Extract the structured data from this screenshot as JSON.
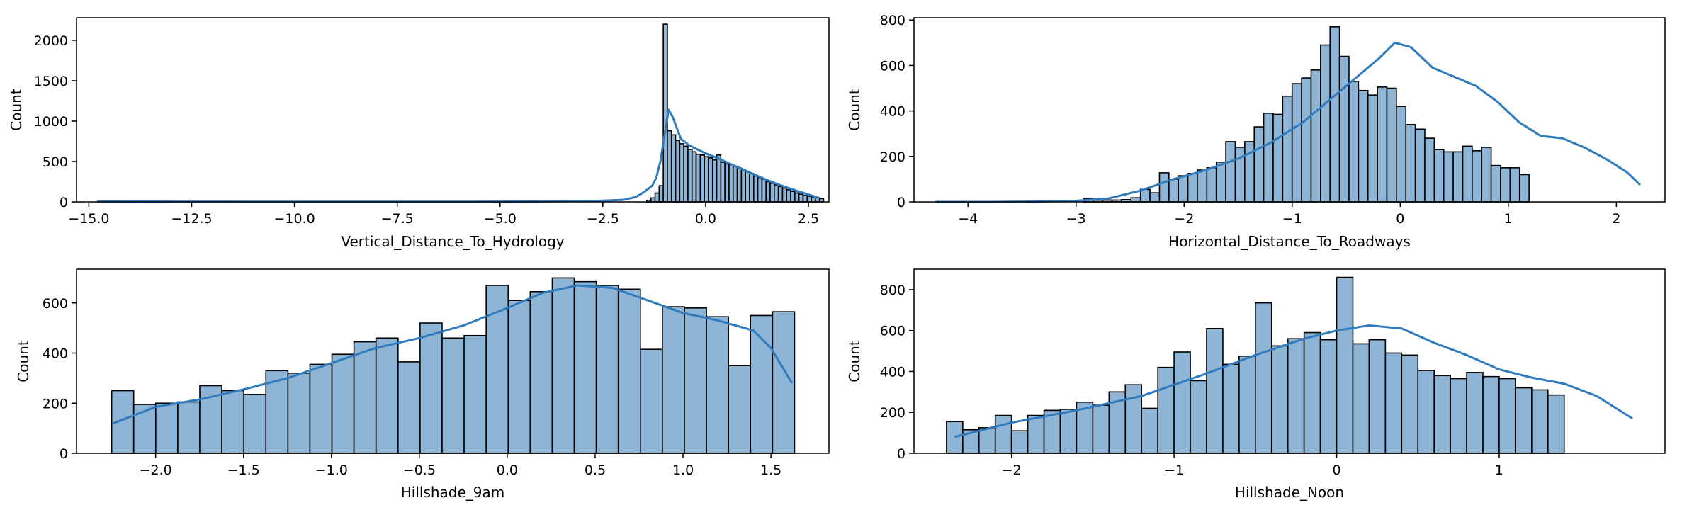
{
  "chart_data": [
    {
      "type": "bar",
      "xlabel": "Vertical_Distance_To_Hydrology",
      "ylabel": "Count",
      "xlim": [
        -15.3,
        3.0
      ],
      "ylim": [
        0,
        2280
      ],
      "xticks": [
        -15.0,
        -12.5,
        -10.0,
        -7.5,
        -5.0,
        -2.5,
        0.0,
        2.5
      ],
      "xtick_labels": [
        "−15.0",
        "−12.5",
        "−10.0",
        "−7.5",
        "−5.0",
        "−2.5",
        "0.0",
        "2.5"
      ],
      "yticks": [
        0,
        500,
        1000,
        1500,
        2000
      ],
      "ytick_labels": [
        "0",
        "500",
        "1000",
        "1500",
        "2000"
      ],
      "bar_color": "#8eb4d6",
      "edge_color": "#000000",
      "kde_color": "#2f7bbd",
      "bins": {
        "start": -1.43,
        "width": 0.1,
        "counts": [
          20,
          50,
          110,
          200,
          2200,
          880,
          830,
          760,
          720,
          690,
          650,
          620,
          590,
          580,
          560,
          545,
          520,
          580,
          490,
          470,
          460,
          440,
          420,
          400,
          380,
          350,
          320,
          300,
          280,
          250,
          230,
          210,
          190,
          170,
          150,
          130,
          110,
          95,
          80,
          70,
          60,
          50,
          40
        ]
      },
      "kde": {
        "x": [
          -14.8,
          -12,
          -9,
          -6,
          -4,
          -3,
          -2.5,
          -2,
          -1.7,
          -1.5,
          -1.3,
          -1.2,
          -1.1,
          -1.0,
          -0.9,
          -0.8,
          -0.6,
          -0.4,
          -0.2,
          0.0,
          0.3,
          0.6,
          1.0,
          1.4,
          1.8,
          2.2,
          2.6,
          2.75
        ],
        "y": [
          5,
          3,
          2,
          2,
          5,
          10,
          15,
          25,
          60,
          120,
          200,
          300,
          500,
          820,
          1140,
          1050,
          780,
          700,
          650,
          600,
          540,
          470,
          380,
          290,
          210,
          140,
          75,
          50
        ]
      }
    },
    {
      "type": "bar",
      "xlabel": "Horizontal_Distance_To_Roadways",
      "ylabel": "Count",
      "xlim": [
        -4.5,
        2.45
      ],
      "ylim": [
        0,
        810
      ],
      "xticks": [
        -4,
        -3,
        -2,
        -1,
        0,
        1,
        2
      ],
      "xtick_labels": [
        "−4",
        "−3",
        "−2",
        "−1",
        "0",
        "1",
        "2"
      ],
      "yticks": [
        0,
        200,
        400,
        600,
        800
      ],
      "ytick_labels": [
        "0",
        "200",
        "400",
        "600",
        "800"
      ],
      "bar_color": "#8eb4d6",
      "edge_color": "#000000",
      "kde_color": "#2f7bbd",
      "bins": {
        "start": -2.93,
        "width": 0.0877,
        "counts": [
          15,
          8,
          8,
          8,
          10,
          18,
          55,
          40,
          128,
          100,
          115,
          125,
          140,
          150,
          175,
          265,
          240,
          265,
          330,
          390,
          385,
          465,
          520,
          545,
          580,
          690,
          770,
          640,
          530,
          490,
          470,
          505,
          500,
          420,
          340,
          320,
          280,
          230,
          220,
          220,
          245,
          225,
          240,
          160,
          150,
          150,
          120
        ]
      },
      "kde": {
        "x": [
          -4.3,
          -3.8,
          -3.3,
          -3.0,
          -2.7,
          -2.4,
          -2.1,
          -1.8,
          -1.5,
          -1.2,
          -0.9,
          -0.6,
          -0.4,
          -0.2,
          -0.05,
          0.1,
          0.3,
          0.5,
          0.7,
          0.9,
          1.1,
          1.3,
          1.5,
          1.7,
          1.9,
          2.1,
          2.22
        ],
        "y": [
          0,
          0,
          2,
          5,
          15,
          50,
          100,
          140,
          190,
          260,
          350,
          470,
          550,
          630,
          700,
          680,
          590,
          550,
          510,
          440,
          350,
          290,
          280,
          240,
          190,
          130,
          75
        ]
      }
    },
    {
      "type": "bar",
      "xlabel": "Hillshade_9am",
      "ylabel": "Count",
      "xlim": [
        -2.45,
        1.83
      ],
      "ylim": [
        0,
        735
      ],
      "xticks": [
        -2.0,
        -1.5,
        -1.0,
        -0.5,
        0.0,
        0.5,
        1.0,
        1.5
      ],
      "xtick_labels": [
        "−2.0",
        "−1.5",
        "−1.0",
        "−0.5",
        "0.0",
        "0.5",
        "1.0",
        "1.5"
      ],
      "yticks": [
        0,
        200,
        400,
        600
      ],
      "ytick_labels": [
        "0",
        "200",
        "400",
        "600"
      ],
      "bar_color": "#8eb4d6",
      "edge_color": "#000000",
      "kde_color": "#2f7bbd",
      "bins": {
        "start": -2.25,
        "width": 0.1253,
        "counts": [
          250,
          195,
          200,
          205,
          270,
          250,
          235,
          330,
          320,
          355,
          395,
          445,
          460,
          365,
          520,
          460,
          470,
          670,
          610,
          645,
          700,
          685,
          670,
          655,
          415,
          585,
          580,
          545,
          350,
          550,
          565
        ]
      },
      "kde": {
        "x": [
          -2.24,
          -2.0,
          -1.75,
          -1.5,
          -1.25,
          -1.0,
          -0.75,
          -0.5,
          -0.25,
          0.0,
          0.2,
          0.4,
          0.6,
          0.8,
          1.0,
          1.2,
          1.4,
          1.5,
          1.62
        ],
        "y": [
          120,
          185,
          215,
          255,
          300,
          360,
          420,
          460,
          510,
          580,
          640,
          670,
          660,
          610,
          560,
          530,
          490,
          420,
          280
        ]
      }
    },
    {
      "type": "bar",
      "xlabel": "Hillshade_Noon",
      "ylabel": "Count",
      "xlim": [
        -2.6,
        2.02
      ],
      "ylim": [
        0,
        900
      ],
      "xticks": [
        -2,
        -1,
        0,
        1
      ],
      "xtick_labels": [
        "−2",
        "−1",
        "0",
        "1"
      ],
      "yticks": [
        0,
        200,
        400,
        600,
        800
      ],
      "ytick_labels": [
        "0",
        "200",
        "400",
        "600",
        "800"
      ],
      "bar_color": "#8eb4d6",
      "edge_color": "#000000",
      "kde_color": "#2f7bbd",
      "bins": {
        "start": -2.4,
        "width": 0.1,
        "counts": [
          155,
          115,
          125,
          185,
          110,
          185,
          210,
          215,
          250,
          235,
          300,
          335,
          220,
          420,
          495,
          355,
          610,
          435,
          475,
          735,
          525,
          560,
          590,
          555,
          860,
          535,
          555,
          490,
          480,
          405,
          380,
          365,
          395,
          375,
          365,
          320,
          310,
          285
        ]
      },
      "kde": {
        "x": [
          -2.35,
          -2.0,
          -1.6,
          -1.2,
          -0.8,
          -0.5,
          -0.2,
          0.0,
          0.2,
          0.4,
          0.6,
          0.8,
          1.0,
          1.2,
          1.4,
          1.6,
          1.82
        ],
        "y": [
          80,
          150,
          210,
          280,
          390,
          480,
          560,
          600,
          625,
          610,
          540,
          480,
          410,
          370,
          340,
          280,
          170
        ]
      }
    }
  ]
}
